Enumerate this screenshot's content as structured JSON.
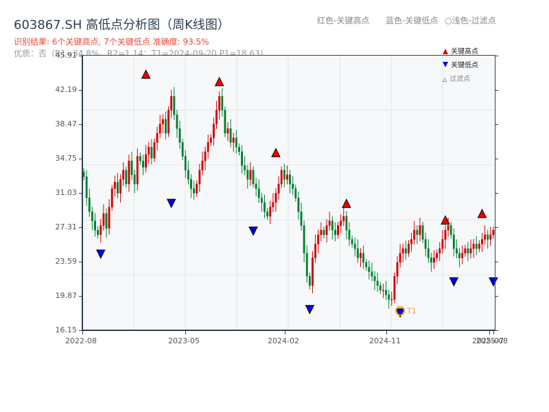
{
  "header": {
    "title": "603867.SH 高低点分析图（周K线图）",
    "result_line": "识别结果: 6个关键高点, 7个关键低点   准确度: 93.5%",
    "quality_line": "优质：否（R1=34.8%，R2=1.14；T1=2024-09-20 P1=18.63)",
    "top_legend": [
      "红色-关键高点",
      "蓝色-关键低点",
      "○浅色-过滤点"
    ]
  },
  "legend": {
    "items": [
      {
        "label": "关键高点",
        "marker": "triangle-up",
        "color": "#e00000"
      },
      {
        "label": "关键低点",
        "marker": "triangle-down",
        "color": "#0000e0"
      },
      {
        "label": "过滤点",
        "marker": "triangle-up-hollow",
        "color": "#ffcccc"
      }
    ]
  },
  "colors": {
    "up": "#d00000",
    "down": "#008030",
    "high_marker": "#ee0000",
    "low_marker": "#0000ee",
    "t1_circle": "#f0a020",
    "axis": "#2c3e50",
    "grid": "#e2e6ea",
    "plot_bg": "#f6f8fa"
  },
  "chart_data": {
    "type": "candlestick",
    "title": "603867.SH 高低点分析图（周K线图）",
    "xlabel": "",
    "ylabel": "",
    "ylim": [
      16.15,
      45.91
    ],
    "y_ticks": [
      16.15,
      19.87,
      23.59,
      27.31,
      31.03,
      34.75,
      38.47,
      42.19,
      45.91
    ],
    "x_ticks": [
      "2022-08",
      "2023-05",
      "2024-02",
      "2024-11",
      "2025-07",
      "2025-08"
    ],
    "closes": [
      32.8,
      30.5,
      29.0,
      28.0,
      27.0,
      26.5,
      27.5,
      28.8,
      27.2,
      29.5,
      31.5,
      32.2,
      31.0,
      32.5,
      33.5,
      32.0,
      34.5,
      33.0,
      32.0,
      35.0,
      34.5,
      33.8,
      35.2,
      36.0,
      34.8,
      36.5,
      37.5,
      38.5,
      39.0,
      37.5,
      40.0,
      41.5,
      39.5,
      38.0,
      36.5,
      35.0,
      33.5,
      32.5,
      31.5,
      31.0,
      32.0,
      33.5,
      34.5,
      35.5,
      36.5,
      37.0,
      38.5,
      40.0,
      41.5,
      40.0,
      37.5,
      38.0,
      36.5,
      37.0,
      36.0,
      35.5,
      34.0,
      33.5,
      32.5,
      33.5,
      32.0,
      31.5,
      30.5,
      30.0,
      29.0,
      28.5,
      29.5,
      30.0,
      31.0,
      32.0,
      33.5,
      32.5,
      33.0,
      32.0,
      31.5,
      30.5,
      29.0,
      27.5,
      24.5,
      22.0,
      21.0,
      24.0,
      25.5,
      26.5,
      27.0,
      26.5,
      27.5,
      28.0,
      27.0,
      26.5,
      27.5,
      28.0,
      28.5,
      27.0,
      26.0,
      25.5,
      25.0,
      24.0,
      24.5,
      23.5,
      23.0,
      22.5,
      22.0,
      21.5,
      21.0,
      20.5,
      20.5,
      20.0,
      19.5,
      19.5,
      22.0,
      23.5,
      24.5,
      25.0,
      24.5,
      25.5,
      26.0,
      27.0,
      26.5,
      27.5,
      26.0,
      25.0,
      24.0,
      23.5,
      24.0,
      24.5,
      25.0,
      26.0,
      27.0,
      27.5,
      26.5,
      25.0,
      24.5,
      24.0,
      24.5,
      25.0,
      24.5,
      25.0,
      25.5,
      25.0,
      25.5,
      26.0,
      26.5,
      26.0,
      26.5,
      27.0
    ],
    "key_highs": [
      {
        "x_index": 22,
        "price": 43.3
      },
      {
        "x_index": 48,
        "price": 42.5
      },
      {
        "x_index": 68,
        "price": 34.8
      },
      {
        "x_index": 93,
        "price": 29.3
      },
      {
        "x_index": 128,
        "price": 27.5
      },
      {
        "x_index": 141,
        "price": 28.2
      }
    ],
    "key_lows": [
      {
        "x_index": 6,
        "price": 25.0
      },
      {
        "x_index": 31,
        "price": 30.5
      },
      {
        "x_index": 60,
        "price": 27.5
      },
      {
        "x_index": 80,
        "price": 19.0
      },
      {
        "x_index": 112,
        "price": 18.63
      },
      {
        "x_index": 131,
        "price": 22.0
      },
      {
        "x_index": 145,
        "price": 22.0
      }
    ],
    "t1": {
      "label": "T1",
      "date": "2024-09-20",
      "price": 18.63
    }
  }
}
